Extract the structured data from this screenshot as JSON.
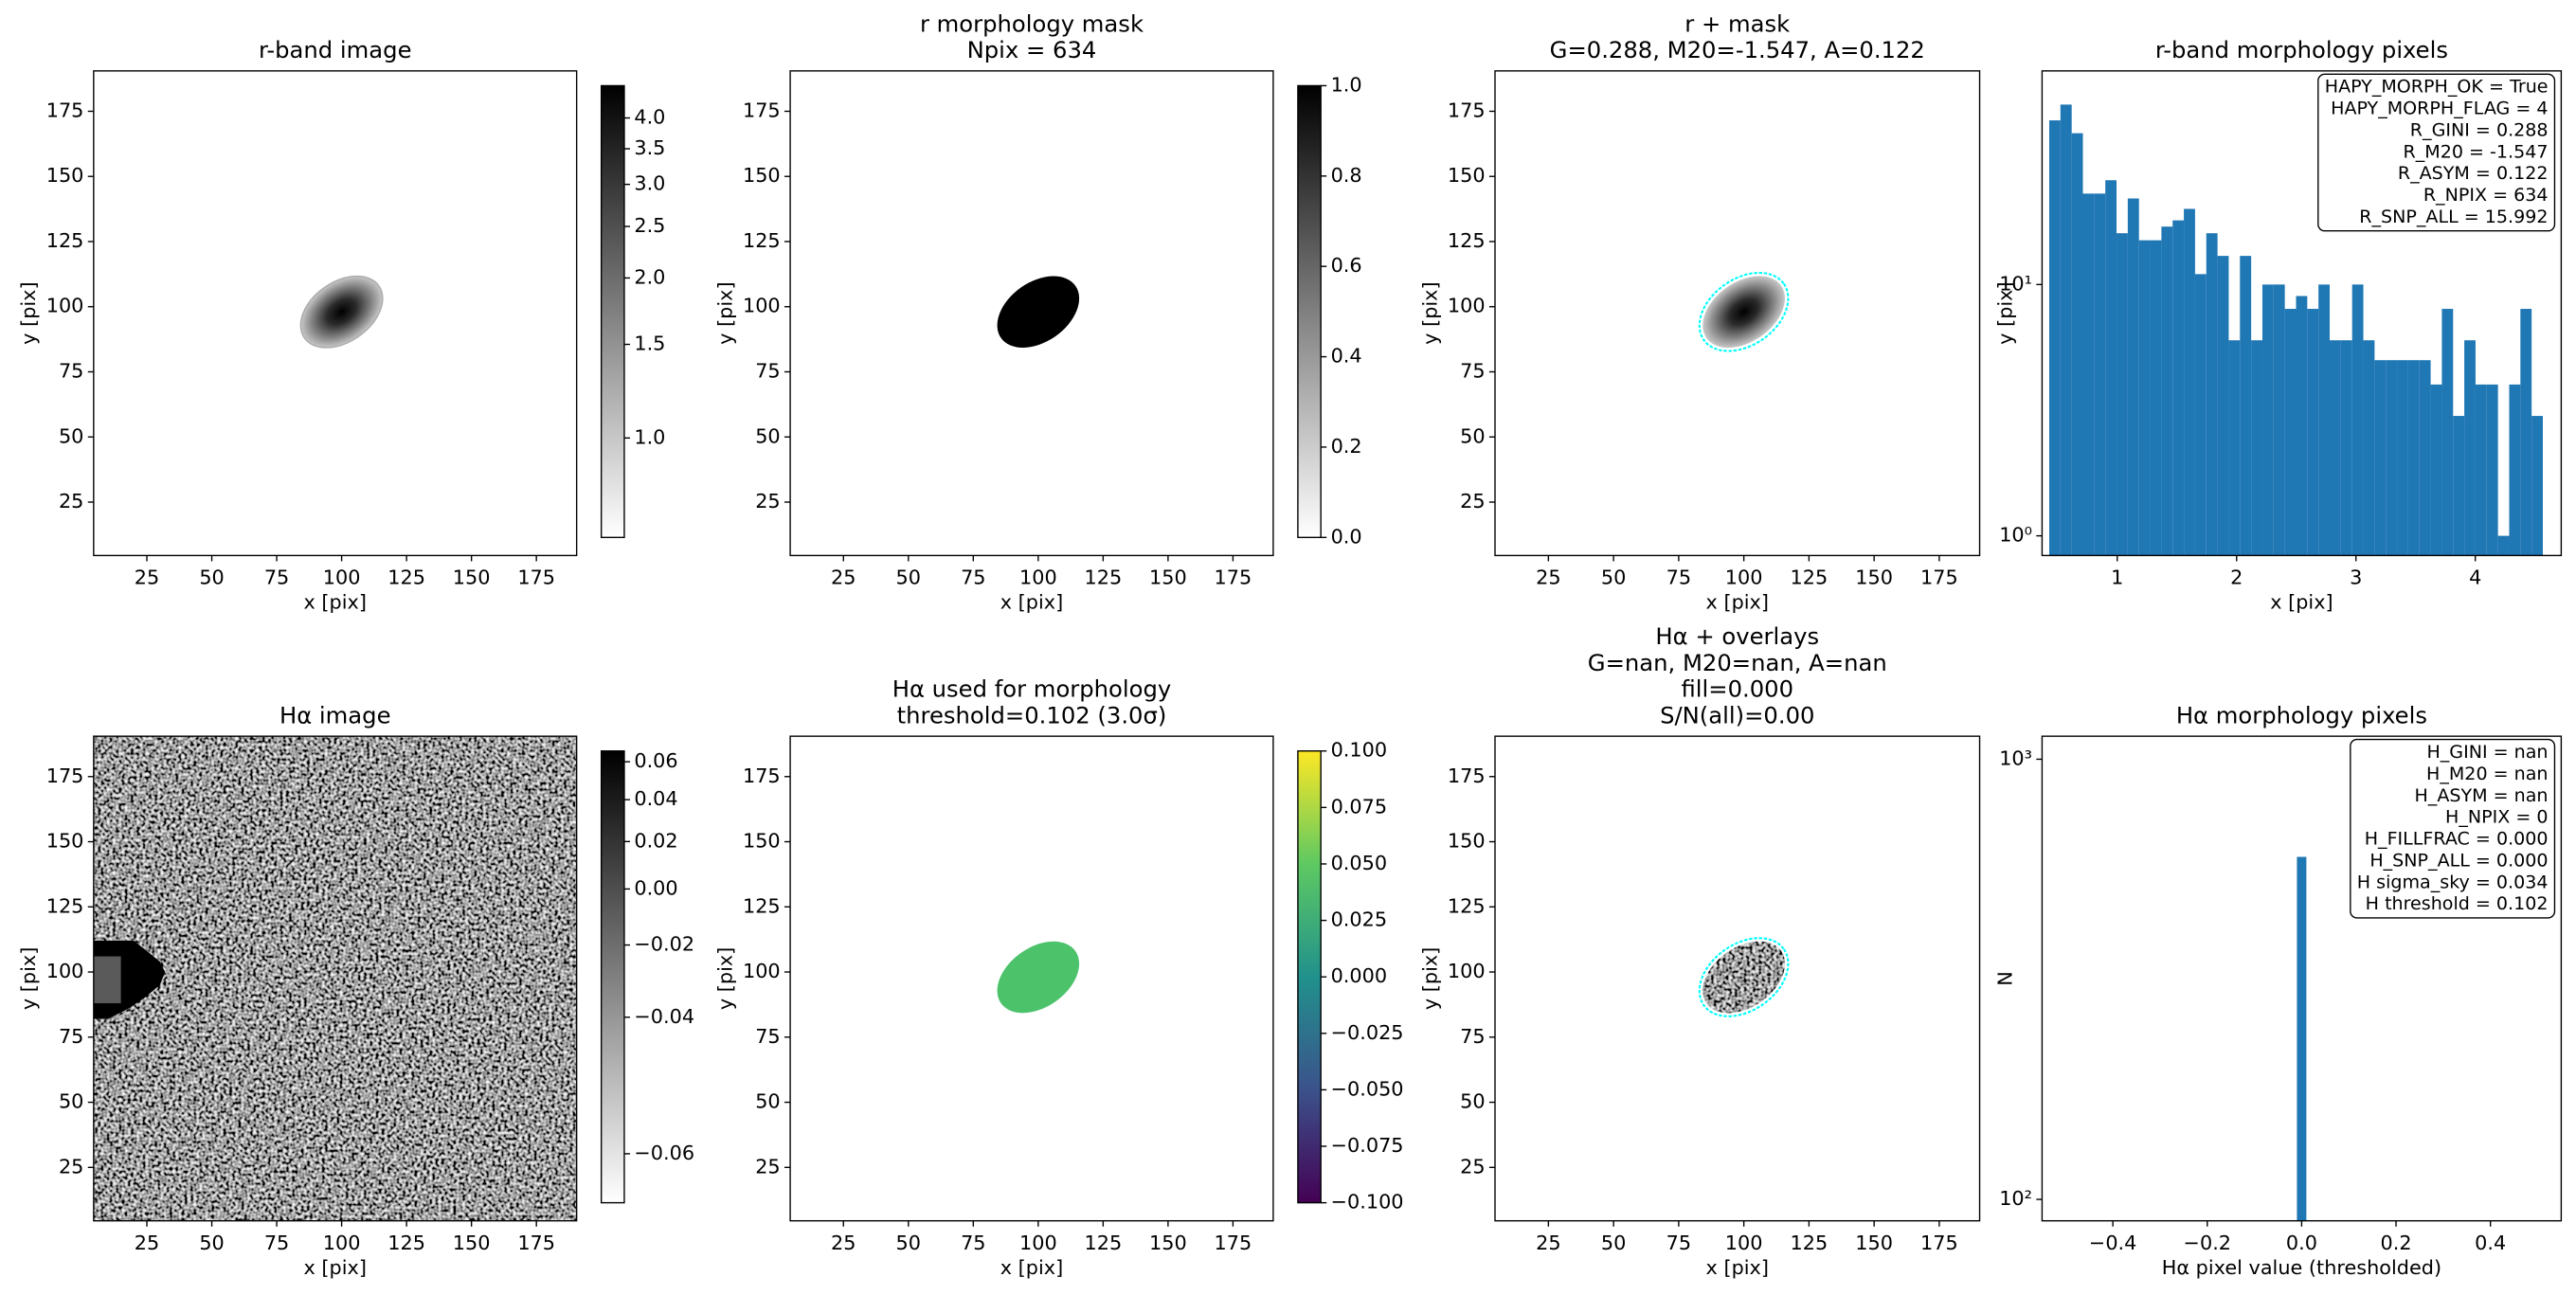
{
  "chart_data": [
    {
      "type": "image",
      "title": [
        "r-band image"
      ],
      "xlabel": "x [pix]",
      "ylabel": "y [pix]",
      "xlim": [
        4.5,
        190.5
      ],
      "ylim": [
        4.5,
        190.5
      ],
      "xticks": [
        25,
        50,
        75,
        100,
        125,
        150,
        175
      ],
      "yticks": [
        25,
        50,
        75,
        100,
        125,
        150,
        175
      ],
      "colorbar": {
        "cmap": "gray_r",
        "scale": "log",
        "clim": [
          0.65,
          4.6
        ],
        "ticks": [
          {
            "value": 1,
            "label": "1.0"
          },
          1.5,
          {
            "value": 2,
            "label": "2.0"
          },
          2.5,
          {
            "value": 3,
            "label": "3.0"
          },
          3.5,
          {
            "value": 4,
            "label": "4.0"
          }
        ]
      }
    },
    {
      "type": "image",
      "title": [
        "r morphology mask",
        "Npix = 634"
      ],
      "xlabel": "x [pix]",
      "ylabel": "y [pix]",
      "xlim": [
        4.5,
        190.5
      ],
      "ylim": [
        4.5,
        190.5
      ],
      "xticks": [
        25,
        50,
        75,
        100,
        125,
        150,
        175
      ],
      "yticks": [
        25,
        50,
        75,
        100,
        125,
        150,
        175
      ],
      "colorbar": {
        "cmap": "gray_r",
        "scale": "linear",
        "clim": [
          0,
          1
        ],
        "ticks": [
          {
            "value": 0,
            "label": "0.0"
          },
          0.2,
          0.4,
          0.6,
          0.8,
          {
            "value": 1,
            "label": "1.0"
          }
        ]
      }
    },
    {
      "type": "image",
      "title": [
        "r + mask",
        "G=0.288, M20=-1.547, A=0.122"
      ],
      "xlabel": "x [pix]",
      "ylabel": "y [pix]",
      "xlim": [
        4.5,
        190.5
      ],
      "ylim": [
        4.5,
        190.5
      ],
      "xticks": [
        25,
        50,
        75,
        100,
        125,
        150,
        175
      ],
      "yticks": [
        25,
        50,
        75,
        100,
        125,
        150,
        175
      ]
    },
    {
      "type": "histogram",
      "title": [
        "r-band morphology pixels"
      ],
      "xlabel": "x [pix]",
      "ylabel": "y [pix]",
      "xlim": [
        0.37,
        4.72
      ],
      "ylim": [
        0.835,
        70.8
      ],
      "yscale": "log",
      "xticks": [
        1,
        2,
        3,
        4
      ],
      "yticks": [
        {
          "value": 1,
          "label": "10⁰"
        },
        {
          "value": 10,
          "label": "10¹"
        }
      ],
      "color": "#1f77b4",
      "bins": [
        0.43,
        0.524,
        0.618,
        0.712,
        0.806,
        0.9,
        0.994,
        1.088,
        1.182,
        1.276,
        1.37,
        1.464,
        1.558,
        1.652,
        1.746,
        1.84,
        1.934,
        2.028,
        2.122,
        2.216,
        2.31,
        2.404,
        2.498,
        2.592,
        2.686,
        2.78,
        2.874,
        2.968,
        3.062,
        3.156,
        3.25,
        3.344,
        3.438,
        3.532,
        3.626,
        3.72,
        3.814,
        3.908,
        4.002,
        4.096,
        4.19,
        4.284,
        4.378,
        4.472,
        4.566
      ],
      "values": [
        45,
        52,
        40,
        23,
        23,
        26,
        16,
        22,
        15,
        15,
        17,
        18,
        20,
        11,
        16,
        13,
        6,
        13,
        6,
        10,
        10,
        8,
        9,
        8,
        10,
        6,
        6,
        10,
        6,
        5,
        5,
        5,
        5,
        5,
        4,
        8,
        3,
        6,
        4,
        4,
        1,
        4,
        8,
        3
      ],
      "stats": [
        "HAPY_MORPH_OK = True",
        "HAPY_MORPH_FLAG = 4",
        "R_GINI = 0.288",
        "R_M20 = -1.547",
        "R_ASYM = 0.122",
        "R_NPIX = 634",
        "R_SNP_ALL = 15.992"
      ]
    },
    {
      "type": "image",
      "title": [
        "Hα image"
      ],
      "xlabel": "x [pix]",
      "ylabel": "y [pix]",
      "xlim": [
        4.5,
        190.5
      ],
      "ylim": [
        4.5,
        190.5
      ],
      "xticks": [
        25,
        50,
        75,
        100,
        125,
        150,
        175
      ],
      "yticks": [
        25,
        50,
        75,
        100,
        125,
        150,
        175
      ],
      "colorbar": {
        "cmap": "gray_r",
        "scale": "sqrt",
        "clim": [
          -0.0615,
          0.066
        ],
        "ticks": [
          0.06,
          0.04,
          0.02,
          {
            "value": 0,
            "label": "0.00"
          },
          {
            "value": -0.02,
            "label": "−0.02"
          },
          {
            "value": -0.04,
            "label": "−0.04"
          },
          {
            "value": -0.06,
            "label": "−0.06"
          }
        ]
      }
    },
    {
      "type": "image",
      "title": [
        "Hα used for morphology",
        "threshold=0.102 (3.0σ)"
      ],
      "xlabel": "x [pix]",
      "ylabel": "y [pix]",
      "xlim": [
        4.5,
        190.5
      ],
      "ylim": [
        4.5,
        190.5
      ],
      "xticks": [
        25,
        50,
        75,
        100,
        125,
        150,
        175
      ],
      "yticks": [
        25,
        50,
        75,
        100,
        125,
        150,
        175
      ],
      "colorbar": {
        "cmap": "viridis",
        "scale": "linear",
        "clim": [
          -0.1,
          0.1
        ],
        "ticks": [
          {
            "value": 0.1,
            "label": "0.100"
          },
          0.075,
          {
            "value": 0.05,
            "label": "0.050"
          },
          0.025,
          {
            "value": 0,
            "label": "0.000"
          },
          {
            "value": -0.025,
            "label": "−0.025"
          },
          {
            "value": -0.05,
            "label": "−0.050"
          },
          {
            "value": -0.075,
            "label": "−0.075"
          },
          {
            "value": -0.1,
            "label": "−0.100"
          }
        ]
      }
    },
    {
      "type": "image",
      "title": [
        "Hα + overlays",
        "G=nan, M20=nan, A=nan",
        "fill=0.000",
        "S/N(all)=0.00"
      ],
      "xlabel": "x [pix]",
      "ylabel": "y [pix]",
      "xlim": [
        4.5,
        190.5
      ],
      "ylim": [
        4.5,
        190.5
      ],
      "xticks": [
        25,
        50,
        75,
        100,
        125,
        150,
        175
      ],
      "yticks": [
        25,
        50,
        75,
        100,
        125,
        150,
        175
      ]
    },
    {
      "type": "histogram",
      "title": [
        "Hα morphology pixels"
      ],
      "xlabel": "Hα pixel value (thresholded)",
      "ylabel": "N",
      "xlim": [
        -0.55,
        0.55
      ],
      "ylim": [
        89.4,
        1128
      ],
      "yscale": "log",
      "xticks": [
        {
          "value": -0.4,
          "label": "−0.4"
        },
        {
          "value": -0.2,
          "label": "−0.2"
        },
        {
          "value": 0,
          "label": "0.0"
        },
        0.2,
        0.4
      ],
      "yticks": [
        {
          "value": 100,
          "label": "10²"
        },
        {
          "value": 1000,
          "label": "10³"
        }
      ],
      "color": "#1f77b4",
      "bins": [
        -0.01,
        0.01
      ],
      "values": [
        600
      ],
      "stats": [
        "H_GINI = nan",
        "H_M20 = nan",
        "H_ASYM = nan",
        "H_NPIX = 0",
        "H_FILLFRAC = 0.000",
        "H_SNP_ALL = 0.000",
        "H sigma_sky = 0.034",
        "H threshold = 0.102"
      ]
    }
  ]
}
